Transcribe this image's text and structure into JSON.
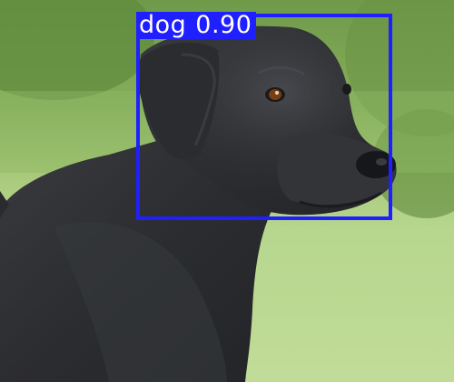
{
  "image": {
    "subject": "dog-photo",
    "colors": {
      "background_grass": "#b7d68e",
      "foliage": "#6f9a49",
      "dog_fur": "#2f3033",
      "box": "#1f1fff",
      "label_text": "#ffffff"
    }
  },
  "detections": [
    {
      "class_label": "dog",
      "confidence": "0.90"
    }
  ]
}
